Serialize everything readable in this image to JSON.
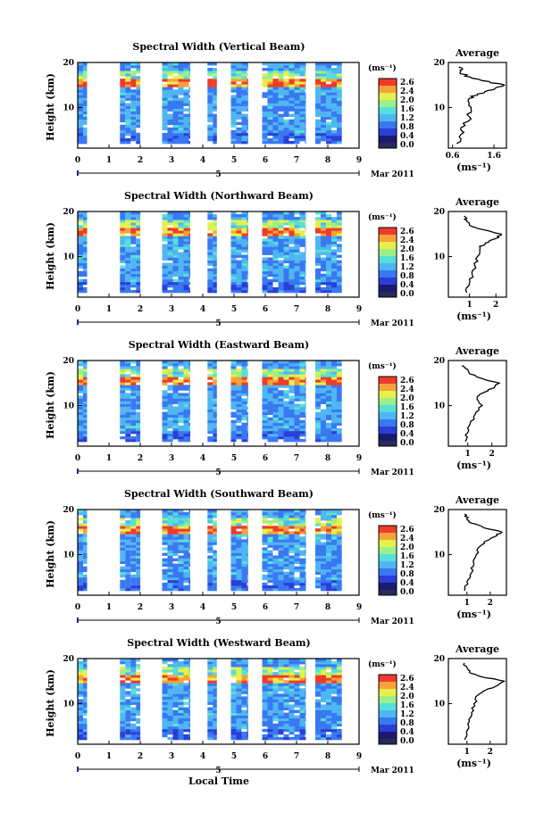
{
  "figure": {
    "x_axis_label": "Local Time",
    "date_label": "Mar 2011",
    "marker_label": "5",
    "y_axis_label": "Height (km)",
    "colorbar_unit": "(ms⁻¹)",
    "colorbar_ticks": [
      "2.6",
      "2.4",
      "2.0",
      "1.6",
      "1.2",
      "0.8",
      "0.4",
      "0.0"
    ],
    "avg_title": "Average",
    "avg_unit": "(ms⁻¹)",
    "x_ticks": [
      "0",
      "1",
      "2",
      "3",
      "4",
      "5",
      "6",
      "7",
      "8",
      "9"
    ],
    "y_ticks": [
      "20",
      "10"
    ]
  },
  "colors": {
    "colormap": [
      "#1a1a6e",
      "#2a3fd6",
      "#3a78f2",
      "#4fb6f2",
      "#57e0d8",
      "#9cf08a",
      "#e6f04a",
      "#f6a23a",
      "#ef3b2b"
    ],
    "bottom_band": "#2a2a5a"
  },
  "chart_data": [
    {
      "type": "heatmap",
      "title": "Spectral Width (Vertical Beam)",
      "xlabel": "",
      "ylabel": "Height (km)",
      "xlim": [
        0,
        9
      ],
      "ylim": [
        1,
        20
      ],
      "clim": [
        0.0,
        2.6
      ],
      "data_segments_hours": [
        [
          0.0,
          0.3
        ],
        [
          1.35,
          2.0
        ],
        [
          2.7,
          3.6
        ],
        [
          4.15,
          4.45
        ],
        [
          4.9,
          5.45
        ],
        [
          5.9,
          7.3
        ],
        [
          7.6,
          8.45
        ]
      ],
      "high_width_layer_km": [
        14,
        16
      ],
      "average_profile": {
        "title": "Average",
        "xlabel": "(ms⁻¹)",
        "x_ticks": [
          "0.6",
          "1.6"
        ],
        "xlim": [
          0.5,
          1.9
        ],
        "height_km": [
          2,
          4,
          6,
          8,
          10,
          12,
          13,
          14,
          15,
          16,
          17,
          18,
          19
        ],
        "width_ms": [
          0.7,
          0.8,
          0.9,
          1.0,
          1.05,
          1.0,
          1.2,
          1.6,
          1.85,
          1.3,
          0.9,
          0.8,
          0.75
        ]
      }
    },
    {
      "type": "heatmap",
      "title": "Spectral Width (Northward Beam)",
      "xlabel": "",
      "ylabel": "Height (km)",
      "xlim": [
        0,
        9
      ],
      "ylim": [
        1,
        20
      ],
      "clim": [
        0.0,
        2.6
      ],
      "data_segments_hours": [
        [
          0.0,
          0.3
        ],
        [
          1.35,
          2.0
        ],
        [
          2.7,
          3.6
        ],
        [
          4.15,
          4.45
        ],
        [
          4.9,
          5.45
        ],
        [
          5.9,
          7.3
        ],
        [
          7.6,
          8.45
        ]
      ],
      "high_width_layer_km": [
        14,
        16
      ],
      "average_profile": {
        "title": "Average",
        "xlabel": "(ms⁻¹)",
        "x_ticks": [
          "1",
          "2"
        ],
        "xlim": [
          0.2,
          2.4
        ],
        "height_km": [
          2,
          4,
          6,
          8,
          10,
          12,
          13,
          14,
          15,
          16,
          17,
          18,
          19
        ],
        "width_ms": [
          0.9,
          1.0,
          1.1,
          1.2,
          1.3,
          1.4,
          1.6,
          2.0,
          2.2,
          1.5,
          1.0,
          0.9,
          0.8
        ]
      }
    },
    {
      "type": "heatmap",
      "title": "Spectral Width (Eastward Beam)",
      "xlabel": "",
      "ylabel": "Height (km)",
      "xlim": [
        0,
        9
      ],
      "ylim": [
        1,
        20
      ],
      "clim": [
        0.0,
        2.6
      ],
      "data_segments_hours": [
        [
          0.0,
          0.3
        ],
        [
          1.35,
          2.0
        ],
        [
          2.7,
          3.6
        ],
        [
          4.15,
          4.45
        ],
        [
          4.9,
          5.45
        ],
        [
          5.9,
          7.3
        ],
        [
          7.6,
          8.45
        ]
      ],
      "high_width_layer_km": [
        14,
        16
      ],
      "average_profile": {
        "title": "Average",
        "xlabel": "(ms⁻¹)",
        "x_ticks": [
          "1",
          "2"
        ],
        "xlim": [
          0.2,
          2.6
        ],
        "height_km": [
          2,
          4,
          6,
          8,
          10,
          12,
          13,
          14,
          15,
          16,
          17,
          18,
          19
        ],
        "width_ms": [
          0.9,
          1.0,
          1.1,
          1.3,
          1.6,
          1.4,
          1.7,
          2.1,
          2.3,
          1.6,
          1.1,
          1.0,
          0.8
        ]
      }
    },
    {
      "type": "heatmap",
      "title": "Spectral Width (Southward Beam)",
      "xlabel": "",
      "ylabel": "Height (km)",
      "xlim": [
        0,
        9
      ],
      "ylim": [
        1,
        20
      ],
      "clim": [
        0.0,
        2.6
      ],
      "data_segments_hours": [
        [
          0.0,
          0.3
        ],
        [
          1.35,
          2.0
        ],
        [
          2.7,
          3.6
        ],
        [
          4.15,
          4.45
        ],
        [
          4.9,
          5.45
        ],
        [
          5.9,
          7.3
        ],
        [
          7.6,
          8.45
        ]
      ],
      "high_width_layer_km": [
        14,
        16
      ],
      "average_profile": {
        "title": "Average",
        "xlabel": "(ms⁻¹)",
        "x_ticks": [
          "1",
          "2"
        ],
        "xlim": [
          0.2,
          2.7
        ],
        "height_km": [
          2,
          4,
          6,
          8,
          10,
          12,
          13,
          14,
          15,
          16,
          17,
          18,
          19
        ],
        "width_ms": [
          0.9,
          1.0,
          1.2,
          1.3,
          1.4,
          1.6,
          1.8,
          2.2,
          2.5,
          1.7,
          1.2,
          1.0,
          0.9
        ]
      }
    },
    {
      "type": "heatmap",
      "title": "Spectral Width (Westward Beam)",
      "xlabel": "Local Time",
      "ylabel": "Height (km)",
      "xlim": [
        0,
        9
      ],
      "ylim": [
        1,
        20
      ],
      "clim": [
        0.0,
        2.6
      ],
      "data_segments_hours": [
        [
          0.0,
          0.3
        ],
        [
          1.35,
          2.0
        ],
        [
          2.7,
          3.6
        ],
        [
          4.15,
          4.45
        ],
        [
          4.9,
          5.45
        ],
        [
          5.9,
          7.3
        ],
        [
          7.6,
          8.45
        ]
      ],
      "high_width_layer_km": [
        14,
        16
      ],
      "average_profile": {
        "title": "Average",
        "xlabel": "(ms⁻¹)",
        "x_ticks": [
          "1",
          "2"
        ],
        "xlim": [
          0.2,
          2.7
        ],
        "height_km": [
          2,
          4,
          6,
          8,
          10,
          12,
          13,
          14,
          15,
          16,
          17,
          18,
          19
        ],
        "width_ms": [
          0.9,
          1.0,
          1.1,
          1.2,
          1.3,
          1.5,
          1.8,
          2.3,
          2.6,
          1.6,
          1.1,
          1.0,
          0.9
        ]
      }
    }
  ]
}
